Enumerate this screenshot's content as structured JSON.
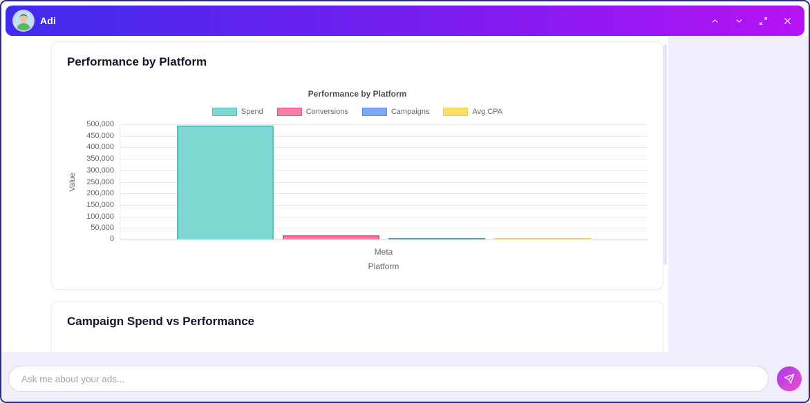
{
  "header": {
    "title": "Adi",
    "icons": {
      "avatar": "person-avatar",
      "controls": [
        "chevron-up",
        "chevron-down",
        "expand",
        "close"
      ]
    }
  },
  "cards": [
    {
      "title": "Performance by Platform"
    },
    {
      "title": "Campaign Spend vs Performance"
    }
  ],
  "chart_data": {
    "type": "bar",
    "title": "Performance by Platform",
    "categories": [
      "Meta"
    ],
    "series": [
      {
        "name": "Spend",
        "values": [
          495000
        ],
        "color": "#7ED8D1",
        "border": "#4EC6BC"
      },
      {
        "name": "Conversions",
        "values": [
          18000
        ],
        "color": "#F77EA9",
        "border": "#F2538C"
      },
      {
        "name": "Campaigns",
        "values": [
          12
        ],
        "color": "#7FA8F6",
        "border": "#5B8DEF"
      },
      {
        "name": "Avg CPA",
        "values": [
          28
        ],
        "color": "#F8E06B",
        "border": "#EFD24A"
      }
    ],
    "xlabel": "Platform",
    "ylabel": "Value",
    "ylim": [
      0,
      500000
    ],
    "ytick_step": 50000,
    "grid": true,
    "legend_position": "top"
  },
  "composer": {
    "placeholder": "Ask me about your ads...",
    "send_icon": "paper-plane"
  },
  "colors": {
    "header_gradient_start": "#3E2CEC",
    "header_gradient_end": "#B613F3",
    "page_background": "#F1EDFC",
    "window_border": "#2A2A7E"
  }
}
